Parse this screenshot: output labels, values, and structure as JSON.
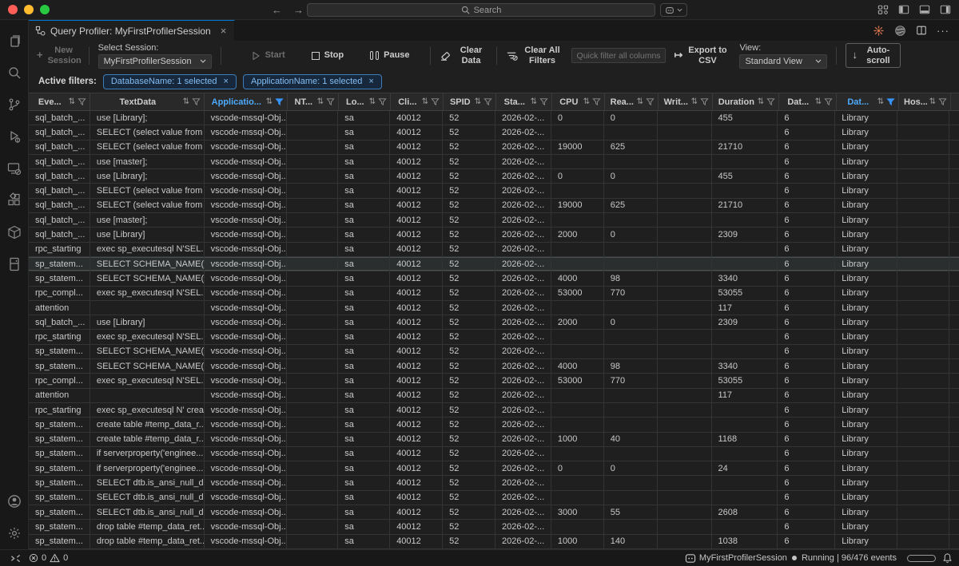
{
  "window": {
    "search_placeholder": "Search"
  },
  "tab_bar": {
    "tab": {
      "title": "Query Profiler: MyFirstProfilerSession",
      "close": "×"
    }
  },
  "toolbar": {
    "new_session": "New Session",
    "select_session_label": "Select Session:",
    "select_session_value": "MyFirstProfilerSession",
    "start": "Start",
    "stop": "Stop",
    "pause": "Pause",
    "clear_data": "Clear Data",
    "clear_all_filters": "Clear All Filters",
    "quick_filter_placeholder": "Quick filter all columns...",
    "export_csv": "Export to CSV",
    "view_label": "View:",
    "view_value": "Standard View",
    "autoscroll": "Auto-scroll"
  },
  "filters": {
    "label": "Active filters:",
    "chips": [
      {
        "label": "DatabaseName: 1 selected",
        "close": "×"
      },
      {
        "label": "ApplicationName: 1 selected",
        "close": "×"
      }
    ]
  },
  "table": {
    "highlighted_row_index": 10,
    "columns": [
      {
        "label": "Eve...",
        "filtered": false
      },
      {
        "label": "TextData",
        "filtered": false
      },
      {
        "label": "Applicatio...",
        "filtered": true
      },
      {
        "label": "NT...",
        "filtered": false
      },
      {
        "label": "Lo...",
        "filtered": false
      },
      {
        "label": "Cli...",
        "filtered": false
      },
      {
        "label": "SPID",
        "filtered": false
      },
      {
        "label": "Sta...",
        "filtered": false
      },
      {
        "label": "CPU",
        "filtered": false
      },
      {
        "label": "Rea...",
        "filtered": false
      },
      {
        "label": "Writ...",
        "filtered": false
      },
      {
        "label": "Duration",
        "filtered": false
      },
      {
        "label": "Dat...",
        "filtered": false
      },
      {
        "label": "Dat...",
        "filtered": true
      },
      {
        "label": "Hos...",
        "filtered": false
      }
    ],
    "rows": [
      [
        "sql_batch_...",
        "use [Library];",
        "vscode-mssql-Obj...",
        "",
        "sa",
        "40012",
        "52",
        "2026-02-...",
        "0",
        "0",
        "",
        "455",
        "6",
        "Library",
        ""
      ],
      [
        "sql_batch_...",
        "SELECT (select value from ...",
        "vscode-mssql-Obj...",
        "",
        "sa",
        "40012",
        "52",
        "2026-02-...",
        "",
        "",
        "",
        "",
        "6",
        "Library",
        ""
      ],
      [
        "sql_batch_...",
        "SELECT (select value from ...",
        "vscode-mssql-Obj...",
        "",
        "sa",
        "40012",
        "52",
        "2026-02-...",
        "19000",
        "625",
        "",
        "21710",
        "6",
        "Library",
        ""
      ],
      [
        "sql_batch_...",
        "use [master];",
        "vscode-mssql-Obj...",
        "",
        "sa",
        "40012",
        "52",
        "2026-02-...",
        "",
        "",
        "",
        "",
        "6",
        "Library",
        ""
      ],
      [
        "sql_batch_...",
        "use [Library];",
        "vscode-mssql-Obj...",
        "",
        "sa",
        "40012",
        "52",
        "2026-02-...",
        "0",
        "0",
        "",
        "455",
        "6",
        "Library",
        ""
      ],
      [
        "sql_batch_...",
        "SELECT (select value from ...",
        "vscode-mssql-Obj...",
        "",
        "sa",
        "40012",
        "52",
        "2026-02-...",
        "",
        "",
        "",
        "",
        "6",
        "Library",
        ""
      ],
      [
        "sql_batch_...",
        "SELECT (select value from ...",
        "vscode-mssql-Obj...",
        "",
        "sa",
        "40012",
        "52",
        "2026-02-...",
        "19000",
        "625",
        "",
        "21710",
        "6",
        "Library",
        ""
      ],
      [
        "sql_batch_...",
        "use [master];",
        "vscode-mssql-Obj...",
        "",
        "sa",
        "40012",
        "52",
        "2026-02-...",
        "",
        "",
        "",
        "",
        "6",
        "Library",
        ""
      ],
      [
        "sql_batch_...",
        "use [Library]",
        "vscode-mssql-Obj...",
        "",
        "sa",
        "40012",
        "52",
        "2026-02-...",
        "2000",
        "0",
        "",
        "2309",
        "6",
        "Library",
        ""
      ],
      [
        "rpc_starting",
        "exec sp_executesql N'SEL...",
        "vscode-mssql-Obj...",
        "",
        "sa",
        "40012",
        "52",
        "2026-02-...",
        "",
        "",
        "",
        "",
        "6",
        "Library",
        ""
      ],
      [
        "sp_statem...",
        "SELECT SCHEMA_NAME(t...",
        "vscode-mssql-Obj...",
        "",
        "sa",
        "40012",
        "52",
        "2026-02-...",
        "",
        "",
        "",
        "",
        "6",
        "Library",
        ""
      ],
      [
        "sp_statem...",
        "SELECT SCHEMA_NAME(t...",
        "vscode-mssql-Obj...",
        "",
        "sa",
        "40012",
        "52",
        "2026-02-...",
        "4000",
        "98",
        "",
        "3340",
        "6",
        "Library",
        ""
      ],
      [
        "rpc_compl...",
        "exec sp_executesql N'SEL...",
        "vscode-mssql-Obj...",
        "",
        "sa",
        "40012",
        "52",
        "2026-02-...",
        "53000",
        "770",
        "",
        "53055",
        "6",
        "Library",
        ""
      ],
      [
        "attention",
        "",
        "vscode-mssql-Obj...",
        "",
        "sa",
        "40012",
        "52",
        "2026-02-...",
        "",
        "",
        "",
        "117",
        "6",
        "Library",
        ""
      ],
      [
        "sql_batch_...",
        "use [Library]",
        "vscode-mssql-Obj...",
        "",
        "sa",
        "40012",
        "52",
        "2026-02-...",
        "2000",
        "0",
        "",
        "2309",
        "6",
        "Library",
        ""
      ],
      [
        "rpc_starting",
        "exec sp_executesql N'SEL...",
        "vscode-mssql-Obj...",
        "",
        "sa",
        "40012",
        "52",
        "2026-02-...",
        "",
        "",
        "",
        "",
        "6",
        "Library",
        ""
      ],
      [
        "sp_statem...",
        "SELECT SCHEMA_NAME(t...",
        "vscode-mssql-Obj...",
        "",
        "sa",
        "40012",
        "52",
        "2026-02-...",
        "",
        "",
        "",
        "",
        "6",
        "Library",
        ""
      ],
      [
        "sp_statem...",
        "SELECT SCHEMA_NAME(t...",
        "vscode-mssql-Obj...",
        "",
        "sa",
        "40012",
        "52",
        "2026-02-...",
        "4000",
        "98",
        "",
        "3340",
        "6",
        "Library",
        ""
      ],
      [
        "rpc_compl...",
        "exec sp_executesql N'SEL...",
        "vscode-mssql-Obj...",
        "",
        "sa",
        "40012",
        "52",
        "2026-02-...",
        "53000",
        "770",
        "",
        "53055",
        "6",
        "Library",
        ""
      ],
      [
        "attention",
        "",
        "vscode-mssql-Obj...",
        "",
        "sa",
        "40012",
        "52",
        "2026-02-...",
        "",
        "",
        "",
        "117",
        "6",
        "Library",
        ""
      ],
      [
        "rpc_starting",
        "exec sp_executesql N' crea...",
        "vscode-mssql-Obj...",
        "",
        "sa",
        "40012",
        "52",
        "2026-02-...",
        "",
        "",
        "",
        "",
        "6",
        "Library",
        ""
      ],
      [
        "sp_statem...",
        "create table #temp_data_r...",
        "vscode-mssql-Obj...",
        "",
        "sa",
        "40012",
        "52",
        "2026-02-...",
        "",
        "",
        "",
        "",
        "6",
        "Library",
        ""
      ],
      [
        "sp_statem...",
        "create table #temp_data_r...",
        "vscode-mssql-Obj...",
        "",
        "sa",
        "40012",
        "52",
        "2026-02-...",
        "1000",
        "40",
        "",
        "1168",
        "6",
        "Library",
        ""
      ],
      [
        "sp_statem...",
        "if serverproperty('enginee...",
        "vscode-mssql-Obj...",
        "",
        "sa",
        "40012",
        "52",
        "2026-02-...",
        "",
        "",
        "",
        "",
        "6",
        "Library",
        ""
      ],
      [
        "sp_statem...",
        "if serverproperty('enginee...",
        "vscode-mssql-Obj...",
        "",
        "sa",
        "40012",
        "52",
        "2026-02-...",
        "0",
        "0",
        "",
        "24",
        "6",
        "Library",
        ""
      ],
      [
        "sp_statem...",
        "SELECT dtb.is_ansi_null_d...",
        "vscode-mssql-Obj...",
        "",
        "sa",
        "40012",
        "52",
        "2026-02-...",
        "",
        "",
        "",
        "",
        "6",
        "Library",
        ""
      ],
      [
        "sp_statem...",
        "SELECT dtb.is_ansi_null_d...",
        "vscode-mssql-Obj...",
        "",
        "sa",
        "40012",
        "52",
        "2026-02-...",
        "",
        "",
        "",
        "",
        "6",
        "Library",
        ""
      ],
      [
        "sp_statem...",
        "SELECT dtb.is_ansi_null_d...",
        "vscode-mssql-Obj...",
        "",
        "sa",
        "40012",
        "52",
        "2026-02-...",
        "3000",
        "55",
        "",
        "2608",
        "6",
        "Library",
        ""
      ],
      [
        "sp_statem...",
        "drop table #temp_data_ret...",
        "vscode-mssql-Obj...",
        "",
        "sa",
        "40012",
        "52",
        "2026-02-...",
        "",
        "",
        "",
        "",
        "6",
        "Library",
        ""
      ],
      [
        "sp_statem...",
        "drop table #temp_data_ret...",
        "vscode-mssql-Obj...",
        "",
        "sa",
        "40012",
        "52",
        "2026-02-...",
        "1000",
        "140",
        "",
        "1038",
        "6",
        "Library",
        ""
      ]
    ]
  },
  "statusbar": {
    "errors": "0",
    "warnings": "0",
    "session": "MyFirstProfilerSession",
    "status": "Running | 96/476 events"
  },
  "colors": {
    "accent": "#0078d4",
    "filter_active": "#3794ff",
    "filtered_header_text": "#4daafc",
    "chip_border": "#3e7cb8"
  }
}
